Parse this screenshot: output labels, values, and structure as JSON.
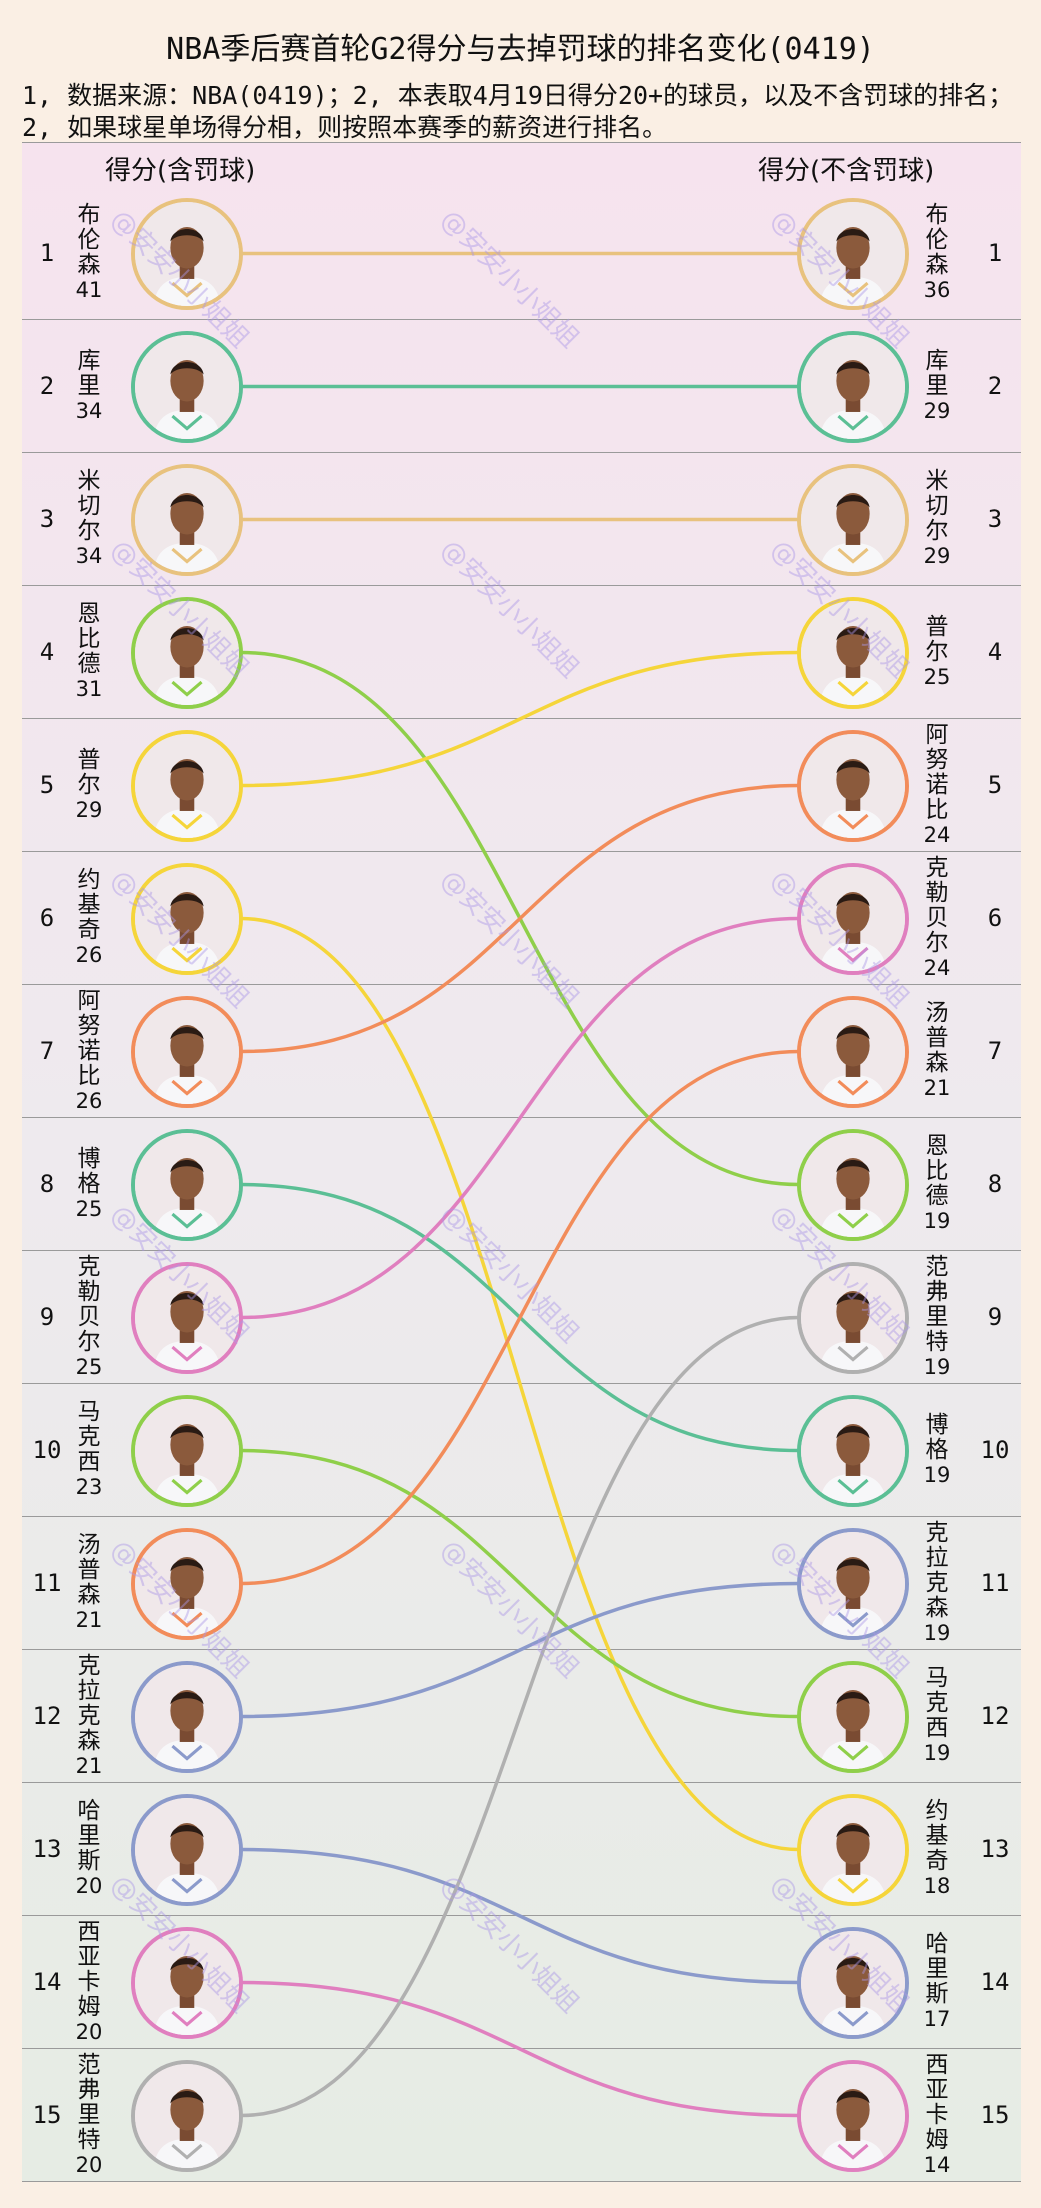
{
  "title": "NBA季后赛首轮G2得分与去掉罚球的排名变化(0419)",
  "notes": [
    "1, 数据来源：NBA(0419)；2, 本表取4月19日得分20+的球员，以及不含罚球的排名；",
    "2, 如果球星单场得分相，则按照本赛季的薪资进行排名。"
  ],
  "headers": {
    "left": "得分(含罚球)",
    "right": "得分(不含罚球)"
  },
  "watermark": "@安安小小姐姐",
  "chart_data": {
    "type": "slope",
    "left_label": "得分(含罚球)",
    "right_label": "得分(不含罚球)",
    "left": [
      {
        "rank": 1,
        "name": "布伦森",
        "score": 41,
        "color": "#e8c27e"
      },
      {
        "rank": 2,
        "name": "库里",
        "score": 34,
        "color": "#5bbf95"
      },
      {
        "rank": 3,
        "name": "米切尔",
        "score": 34,
        "color": "#e8c27e"
      },
      {
        "rank": 4,
        "name": "恩比德",
        "score": 31,
        "color": "#8fcf4a"
      },
      {
        "rank": 5,
        "name": "普尔",
        "score": 29,
        "color": "#f5d53a"
      },
      {
        "rank": 6,
        "name": "约基奇",
        "score": 26,
        "color": "#f5d53a"
      },
      {
        "rank": 7,
        "name": "阿努诺比",
        "score": 26,
        "color": "#f28c5a"
      },
      {
        "rank": 8,
        "name": "博格",
        "score": 25,
        "color": "#5bbf95"
      },
      {
        "rank": 9,
        "name": "克勒贝尔",
        "score": 25,
        "color": "#e07fbf"
      },
      {
        "rank": 10,
        "name": "马克西",
        "score": 23,
        "color": "#8fcf4a"
      },
      {
        "rank": 11,
        "name": "汤普森",
        "score": 21,
        "color": "#f28c5a"
      },
      {
        "rank": 12,
        "name": "克拉克森",
        "score": 21,
        "color": "#8b9acb"
      },
      {
        "rank": 13,
        "name": "哈里斯",
        "score": 20,
        "color": "#8b9acb"
      },
      {
        "rank": 14,
        "name": "西亚卡姆",
        "score": 20,
        "color": "#e07fbf"
      },
      {
        "rank": 15,
        "name": "范弗里特",
        "score": 20,
        "color": "#b0b0b0"
      }
    ],
    "right": [
      {
        "rank": 1,
        "name": "布伦森",
        "score": 36,
        "color": "#e8c27e"
      },
      {
        "rank": 2,
        "name": "库里",
        "score": 29,
        "color": "#5bbf95"
      },
      {
        "rank": 3,
        "name": "米切尔",
        "score": 29,
        "color": "#e8c27e"
      },
      {
        "rank": 4,
        "name": "普尔",
        "score": 25,
        "color": "#f5d53a"
      },
      {
        "rank": 5,
        "name": "阿努诺比",
        "score": 24,
        "color": "#f28c5a"
      },
      {
        "rank": 6,
        "name": "克勒贝尔",
        "score": 24,
        "color": "#e07fbf"
      },
      {
        "rank": 7,
        "name": "汤普森",
        "score": 21,
        "color": "#f28c5a"
      },
      {
        "rank": 8,
        "name": "恩比德",
        "score": 19,
        "color": "#8fcf4a"
      },
      {
        "rank": 9,
        "name": "范弗里特",
        "score": 19,
        "color": "#b0b0b0"
      },
      {
        "rank": 10,
        "name": "博格",
        "score": 19,
        "color": "#5bbf95"
      },
      {
        "rank": 11,
        "name": "克拉克森",
        "score": 19,
        "color": "#8b9acb"
      },
      {
        "rank": 12,
        "name": "马克西",
        "score": 19,
        "color": "#8fcf4a"
      },
      {
        "rank": 13,
        "name": "约基奇",
        "score": 18,
        "color": "#f5d53a"
      },
      {
        "rank": 14,
        "name": "哈里斯",
        "score": 17,
        "color": "#8b9acb"
      },
      {
        "rank": 15,
        "name": "西亚卡姆",
        "score": 14,
        "color": "#e07fbf"
      }
    ]
  }
}
